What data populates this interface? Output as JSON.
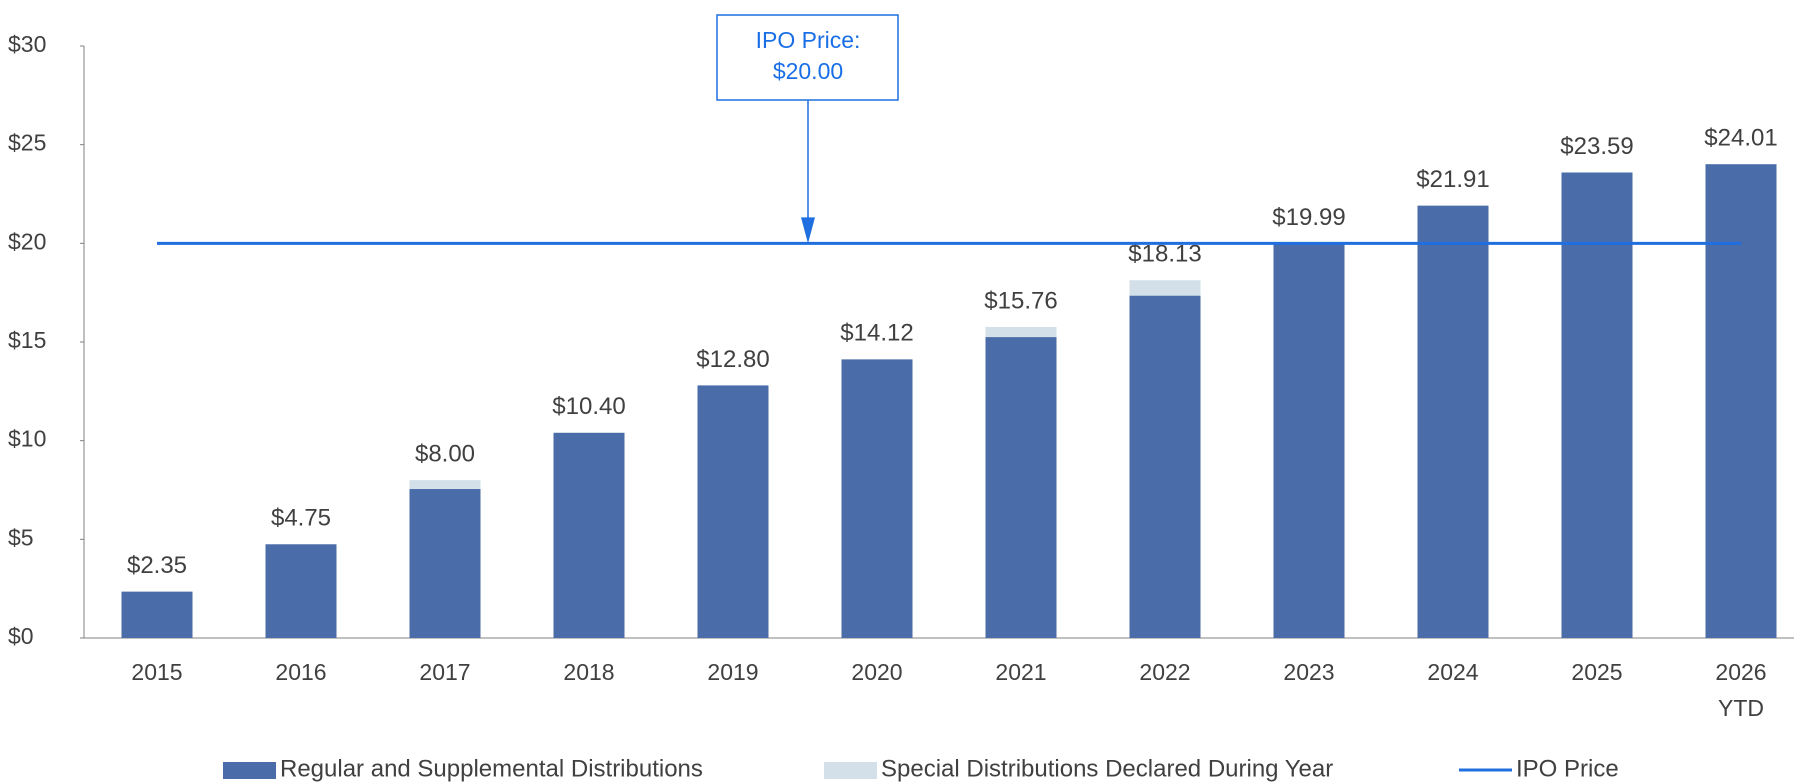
{
  "chart_data": {
    "type": "stacked_bar",
    "categories": [
      "2015",
      "2016",
      "2017",
      "2018",
      "2019",
      "2020",
      "2021",
      "2022",
      "2023",
      "2024",
      "2025",
      "2026\nYTD"
    ],
    "series": [
      {
        "name": "Regular and Supplemental Distributions",
        "color": "#4a6ca8",
        "values": [
          2.35,
          4.75,
          7.55,
          10.4,
          12.8,
          14.12,
          15.25,
          17.35,
          19.99,
          21.91,
          23.59,
          24.01
        ]
      },
      {
        "name": "Special Distributions Declared During Year",
        "color": "#d3e0ea",
        "values": [
          0,
          0,
          0.45,
          0,
          0,
          0,
          0.51,
          0.78,
          0,
          0,
          0,
          0
        ]
      },
      {
        "name": "IPO Price",
        "type": "line",
        "color": "#1f6fe0",
        "values": [
          20,
          20,
          20,
          20,
          20,
          20,
          20,
          20,
          20,
          20,
          20,
          20
        ]
      }
    ],
    "total_labels": [
      "$2.35",
      "$4.75",
      "$8.00",
      "$10.40",
      "$12.80",
      "$14.12",
      "$15.76",
      "$18.13",
      "$19.99",
      "$21.91",
      "$23.59",
      "$24.01"
    ],
    "annotation": {
      "text": "IPO Price:\n$20.00",
      "value": 20
    },
    "ylim": [
      0,
      30
    ],
    "yticks": [
      {
        "value": 0,
        "label": "$0"
      },
      {
        "value": 5,
        "label": "$5"
      },
      {
        "value": 10,
        "label": "$10"
      },
      {
        "value": 15,
        "label": "$15"
      },
      {
        "value": 20,
        "label": "$20"
      },
      {
        "value": 25,
        "label": "$25"
      },
      {
        "value": 30,
        "label": "$30"
      }
    ],
    "grid": false,
    "legend": "bottom"
  }
}
